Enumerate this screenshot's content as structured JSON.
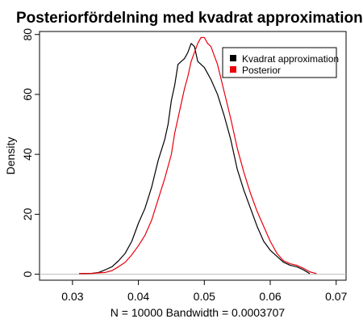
{
  "chart_data": {
    "type": "line",
    "title": "Posteriorfördelning med kvadrat approximation",
    "xlabel": "N = 10000   Bandwidth = 0.0003707",
    "ylabel": "Density",
    "xlim": [
      0.025,
      0.0715
    ],
    "ylim": [
      -2,
      81
    ],
    "x_ticks": [
      "0.03",
      "0.04",
      "0.05",
      "0.06",
      "0.07"
    ],
    "y_ticks": [
      "0",
      "20",
      "40",
      "60",
      "80"
    ],
    "x_tick_values": [
      0.03,
      0.04,
      0.05,
      0.06,
      0.07
    ],
    "y_tick_values": [
      0,
      20,
      40,
      60,
      80
    ],
    "grid": false,
    "baseline_color": "#bbbbbb",
    "legend": {
      "position": "top-right",
      "entries": [
        {
          "label": "Kvadrat approximation",
          "color": "#000000"
        },
        {
          "label": "Posterior",
          "color": "#e8000b"
        }
      ]
    },
    "series": [
      {
        "name": "Kvadrat approximation",
        "color": "#000000",
        "x": [
          0.031,
          0.033,
          0.034,
          0.035,
          0.036,
          0.037,
          0.038,
          0.039,
          0.04,
          0.041,
          0.042,
          0.043,
          0.044,
          0.0445,
          0.045,
          0.0455,
          0.046,
          0.0465,
          0.047,
          0.0475,
          0.048,
          0.0485,
          0.049,
          0.0495,
          0.05,
          0.0505,
          0.051,
          0.052,
          0.053,
          0.054,
          0.055,
          0.056,
          0.057,
          0.058,
          0.059,
          0.06,
          0.061,
          0.062,
          0.063,
          0.064,
          0.065,
          0.066
        ],
        "y": [
          0.2,
          0.3,
          0.6,
          1.5,
          2.5,
          4.5,
          7.0,
          11,
          17,
          22,
          29,
          38,
          45,
          50,
          58,
          63,
          70,
          71,
          72,
          74,
          77,
          76,
          71,
          70,
          69,
          67,
          65,
          60,
          53,
          45,
          35,
          28,
          22,
          16,
          11,
          8,
          6,
          4,
          3,
          2.5,
          1.5,
          0.2
        ]
      },
      {
        "name": "Posterior",
        "color": "#e8000b",
        "x": [
          0.031,
          0.033,
          0.035,
          0.036,
          0.037,
          0.038,
          0.039,
          0.04,
          0.041,
          0.042,
          0.043,
          0.044,
          0.045,
          0.0455,
          0.046,
          0.0465,
          0.047,
          0.0475,
          0.048,
          0.0485,
          0.049,
          0.0495,
          0.05,
          0.0505,
          0.051,
          0.0515,
          0.052,
          0.053,
          0.054,
          0.055,
          0.056,
          0.057,
          0.058,
          0.059,
          0.06,
          0.061,
          0.062,
          0.063,
          0.064,
          0.065,
          0.066,
          0.067
        ],
        "y": [
          0.2,
          0.3,
          0.6,
          1.2,
          2.5,
          4.0,
          6.5,
          9.5,
          13,
          18,
          25,
          32,
          40,
          47,
          52,
          57,
          62,
          66,
          71,
          74,
          77,
          79,
          79,
          77,
          76,
          73,
          70,
          61,
          52,
          42,
          34,
          27,
          21,
          16,
          11,
          7,
          4.5,
          3.5,
          3.0,
          2.0,
          0.8,
          0.2
        ]
      }
    ]
  }
}
